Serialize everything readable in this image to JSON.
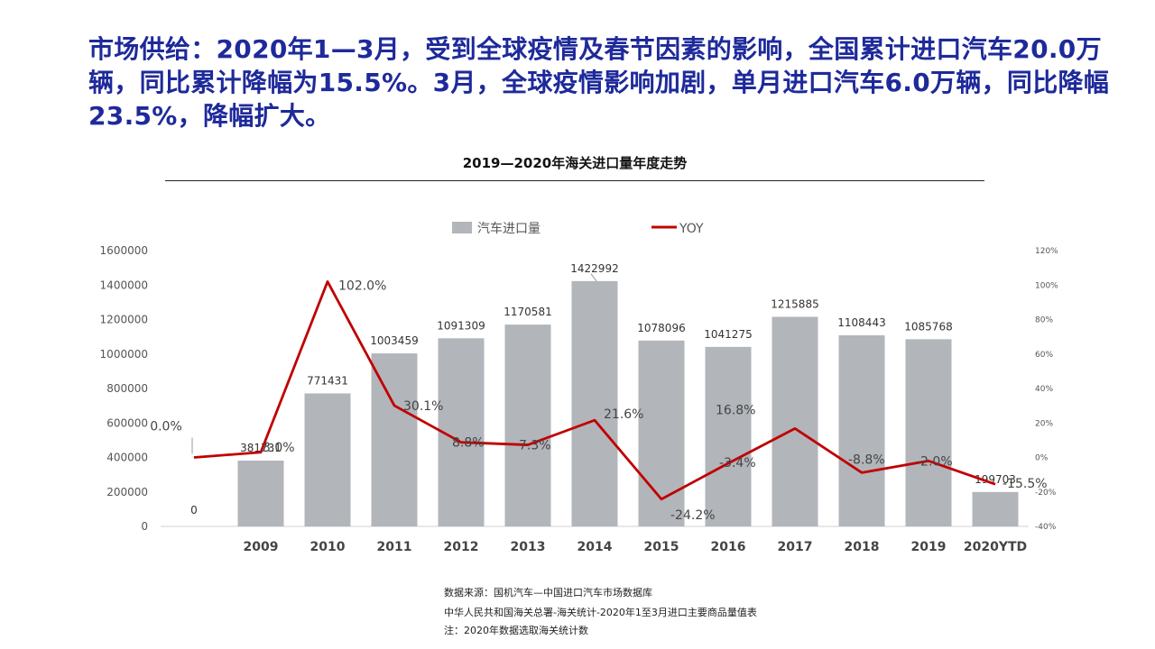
{
  "headline": "市场供给：2020年1—3月，受到全球疫情及春节因素的影响，全国累计进口汽车20.0万辆，同比累计降幅为15.5%。3月，全球疫情影响加剧，单月进口汽车6.0万辆，同比降幅23.5%，降幅扩大。",
  "chart_data": {
    "type": "bar",
    "title": "2019—2020年海关进口量年度走势",
    "categories": [
      "",
      "2009",
      "2010",
      "2011",
      "2012",
      "2013",
      "2014",
      "2015",
      "2016",
      "2017",
      "2018",
      "2019",
      "2020YTD"
    ],
    "series": [
      {
        "name": "汽车进口量",
        "type": "bar",
        "axis": "left",
        "values": [
          0,
          381731,
          771431,
          1003459,
          1091309,
          1170581,
          1422992,
          1078096,
          1041275,
          1215885,
          1108443,
          1085768,
          199703
        ],
        "labels": [
          "0",
          "381731",
          "771431",
          "1003459",
          "1091309",
          "1170581",
          "1422992",
          "1078096",
          "1041275",
          "1215885",
          "1108443",
          "1085768",
          "199703"
        ]
      },
      {
        "name": "YOY",
        "type": "line",
        "axis": "right",
        "values": [
          0.0,
          3.0,
          102.0,
          30.1,
          8.8,
          7.3,
          21.6,
          -24.2,
          -3.4,
          16.8,
          -8.8,
          -2.0,
          -15.5
        ],
        "labels": [
          "0.0%",
          "3.0%",
          "102.0%",
          "30.1%",
          "8.8%",
          "7.3%",
          "21.6%",
          "-24.2%",
          "-3.4%",
          "16.8%",
          "-8.8%",
          "-2.0%",
          "-15.5%"
        ]
      }
    ],
    "left_axis": {
      "ylim": [
        0,
        1600000
      ],
      "ticks": [
        "0",
        "200000",
        "400000",
        "600000",
        "800000",
        "1000000",
        "1200000",
        "1400000",
        "1600000"
      ]
    },
    "right_axis": {
      "ylim": [
        -40,
        120
      ],
      "ticks": [
        "-40%",
        "-20%",
        "0%",
        "20%",
        "40%",
        "60%",
        "80%",
        "100%",
        "120%"
      ]
    },
    "legend_position": "top",
    "grid": false,
    "colors": {
      "bar": "#b2b5ba",
      "line": "#c00000",
      "axis_text": "#555555"
    }
  },
  "source_notes": [
    "数据来源：国机汽车—中国进口汽车市场数据库",
    "中华人民共和国海关总署-海关统计-2020年1至3月进口主要商品量值表",
    "注：2020年数据选取海关统计数"
  ]
}
